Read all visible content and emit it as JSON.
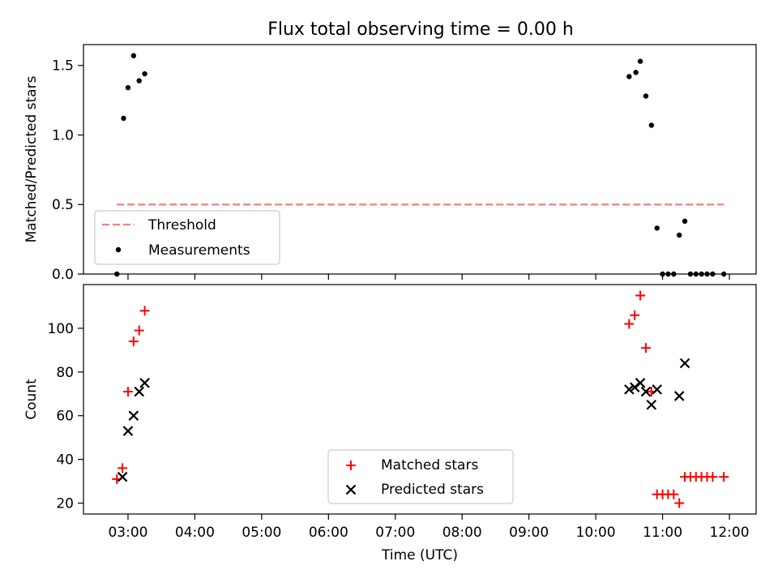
{
  "title": "Flux total observing time = 0.00 h",
  "chart_data": [
    {
      "type": "scatter",
      "panel": "top",
      "xlabel": "",
      "ylabel": "Matched/Predicted stars",
      "xlim": [
        "02:20",
        "12:24"
      ],
      "ylim": [
        0,
        1.65
      ],
      "yticks": [
        "0.0",
        "0.5",
        "1.0",
        "1.5"
      ],
      "legend": {
        "placement": "lower-left",
        "entries": [
          "Threshold",
          "Measurements"
        ]
      },
      "threshold": {
        "name": "Threshold",
        "value": 0.5,
        "x": [
          "02:50",
          "11:55"
        ],
        "color": "#ff7b7b"
      },
      "series": [
        {
          "name": "Measurements",
          "color": "#000000",
          "points": [
            [
              "02:50",
              0.0
            ],
            [
              "02:56",
              1.12
            ],
            [
              "03:00",
              1.34
            ],
            [
              "03:05",
              1.57
            ],
            [
              "03:10",
              1.39
            ],
            [
              "03:15",
              1.44
            ],
            [
              "10:30",
              1.42
            ],
            [
              "10:36",
              1.45
            ],
            [
              "10:40",
              1.53
            ],
            [
              "10:45",
              1.28
            ],
            [
              "10:50",
              1.07
            ],
            [
              "10:55",
              0.33
            ],
            [
              "11:00",
              0.0
            ],
            [
              "11:05",
              0.0
            ],
            [
              "11:10",
              0.0
            ],
            [
              "11:15",
              0.28
            ],
            [
              "11:20",
              0.38
            ],
            [
              "11:25",
              0.0
            ],
            [
              "11:30",
              0.0
            ],
            [
              "11:35",
              0.0
            ],
            [
              "11:40",
              0.0
            ],
            [
              "11:45",
              0.0
            ],
            [
              "11:55",
              0.0
            ]
          ]
        }
      ]
    },
    {
      "type": "scatter",
      "panel": "bottom",
      "xlabel": "Time (UTC)",
      "ylabel": "Count",
      "xlim": [
        "02:20",
        "12:24"
      ],
      "ylim": [
        15,
        120
      ],
      "yticks": [
        "20",
        "40",
        "60",
        "80",
        "100"
      ],
      "xticks": [
        "03:00",
        "04:00",
        "05:00",
        "06:00",
        "07:00",
        "08:00",
        "09:00",
        "10:00",
        "11:00",
        "12:00"
      ],
      "legend": {
        "placement": "lower-center",
        "entries": [
          "Matched stars",
          "Predicted stars"
        ]
      },
      "series": [
        {
          "name": "Matched stars",
          "marker": "+",
          "color": "#ff0000",
          "points": [
            [
              "02:50",
              31
            ],
            [
              "02:55",
              36
            ],
            [
              "03:00",
              71
            ],
            [
              "03:05",
              94
            ],
            [
              "03:10",
              99
            ],
            [
              "03:15",
              108
            ],
            [
              "10:30",
              102
            ],
            [
              "10:35",
              106
            ],
            [
              "10:40",
              115
            ],
            [
              "10:45",
              91
            ],
            [
              "10:50",
              71
            ],
            [
              "10:55",
              24
            ],
            [
              "11:00",
              24
            ],
            [
              "11:05",
              24
            ],
            [
              "11:10",
              24
            ],
            [
              "11:15",
              20
            ],
            [
              "11:20",
              32
            ],
            [
              "11:25",
              32
            ],
            [
              "11:30",
              32
            ],
            [
              "11:35",
              32
            ],
            [
              "11:40",
              32
            ],
            [
              "11:45",
              32
            ],
            [
              "11:55",
              32
            ]
          ]
        },
        {
          "name": "Predicted stars",
          "marker": "x",
          "color": "#000000",
          "points": [
            [
              "02:55",
              32
            ],
            [
              "03:00",
              53
            ],
            [
              "03:05",
              60
            ],
            [
              "03:10",
              71
            ],
            [
              "03:15",
              75
            ],
            [
              "10:30",
              72
            ],
            [
              "10:35",
              73
            ],
            [
              "10:40",
              75
            ],
            [
              "10:45",
              71
            ],
            [
              "10:50",
              65
            ],
            [
              "10:55",
              72
            ],
            [
              "11:15",
              69
            ],
            [
              "11:20",
              84
            ]
          ]
        }
      ]
    }
  ]
}
